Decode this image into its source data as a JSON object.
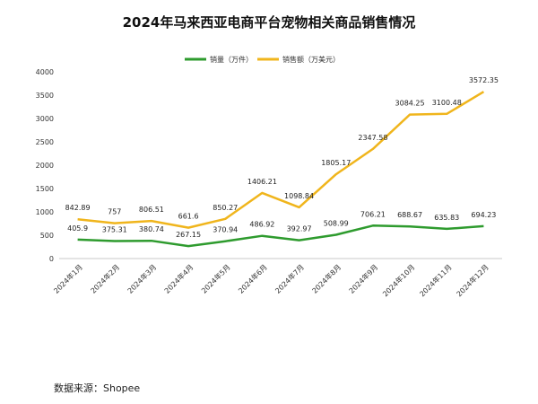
{
  "chart_data": {
    "type": "line",
    "title": "2024年马来西亚电商平台宠物相关商品销售情况",
    "categories": [
      "2024年1月",
      "2024年2月",
      "2024年3月",
      "2024年4月",
      "2024年5月",
      "2024年6月",
      "2024年7月",
      "2024年8月",
      "2024年9月",
      "2024年10月",
      "2024年11月",
      "2024年12月"
    ],
    "series": [
      {
        "name": "销量（万件）",
        "color": "#2e9b2e",
        "values": [
          405.9,
          375.31,
          380.74,
          267.15,
          370.94,
          486.92,
          392.97,
          508.99,
          706.21,
          688.67,
          635.83,
          694.23
        ]
      },
      {
        "name": "销售额（万美元）",
        "color": "#f0b51c",
        "values": [
          842.89,
          757,
          806.51,
          661.6,
          850.27,
          1406.21,
          1098.84,
          1805.17,
          2347.58,
          3084.25,
          3100.48,
          3572.35
        ]
      }
    ],
    "value_labels": {
      "销量（万件）": [
        "405.9",
        "375.31",
        "380.74",
        "267.15",
        "370.94",
        "486.92",
        "392.97",
        "508.99",
        "706.21",
        "688.67",
        "635.83",
        "694.23"
      ],
      "销售额（万美元）": [
        "842.89",
        "757",
        "806.51",
        "661.6",
        "850.27",
        "1406.21",
        "1098.84",
        "1805.17",
        "2347.58",
        "3084.25",
        "3100.48",
        "3572.35"
      ]
    },
    "ylim": [
      0,
      4000
    ],
    "yticks": [
      "0",
      "500",
      "1000",
      "1500",
      "2000",
      "2500",
      "3000",
      "3500",
      "4000"
    ],
    "grid": false,
    "legend": "top-center",
    "xlabel": "",
    "ylabel": ""
  },
  "source_text": "数据来源：Shopee"
}
